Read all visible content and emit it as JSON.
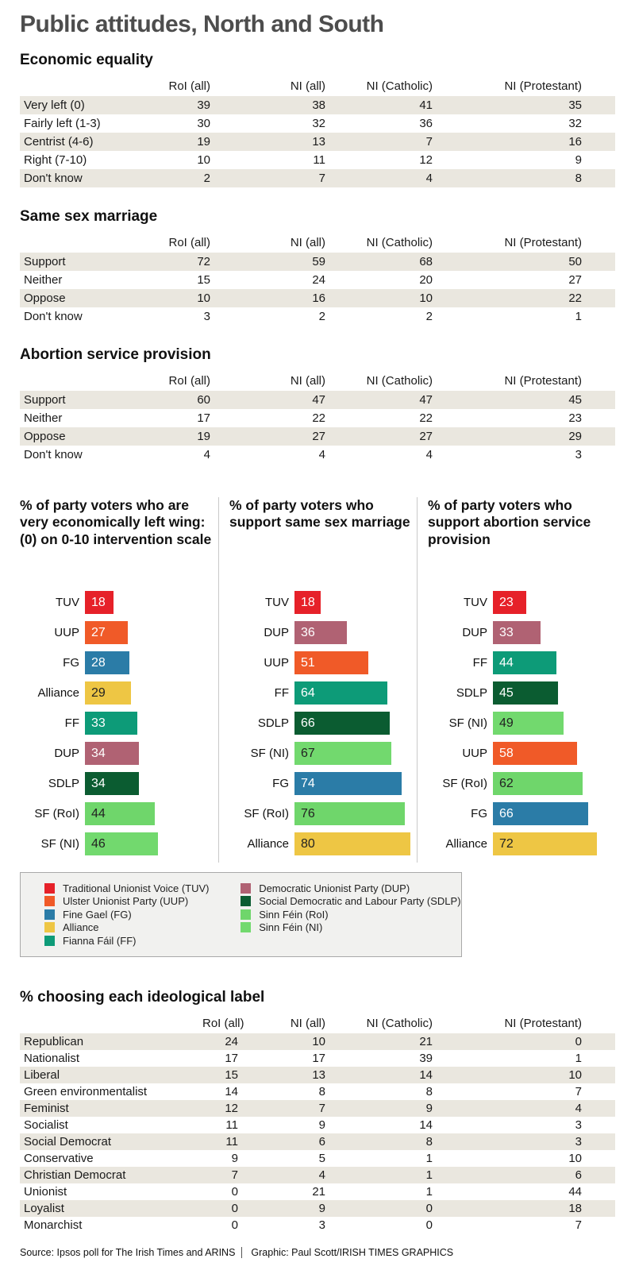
{
  "title": "Public attitudes, North and South",
  "colors": {
    "tuv_red": "#e62129",
    "uup_orange": "#f05a28",
    "fg_blue": "#2b7ca7",
    "alliance_yellow": "#eec644",
    "ff_teal": "#0d9b78",
    "dup_mauve": "#b06273",
    "sdlp_dark_green": "#0b5c31",
    "sf_roi_green": "#6fd66b",
    "sf_ni_green": "#72d96e",
    "row_shade": "#eae7df",
    "title_gray": "#4d4d4d"
  },
  "chart_data": [
    {
      "type": "table",
      "title": "Economic equality",
      "columns": [
        "RoI (all)",
        "NI (all)",
        "NI (Catholic)",
        "NI (Protestant)"
      ],
      "rows": [
        {
          "label": "Very left (0)",
          "values": [
            39,
            38,
            41,
            35
          ]
        },
        {
          "label": "Fairly left (1-3)",
          "values": [
            30,
            32,
            36,
            32
          ]
        },
        {
          "label": "Centrist (4-6)",
          "values": [
            19,
            13,
            7,
            16
          ]
        },
        {
          "label": "Right (7-10)",
          "values": [
            10,
            11,
            12,
            9
          ]
        },
        {
          "label": "Don't know",
          "values": [
            2,
            7,
            4,
            8
          ]
        }
      ]
    },
    {
      "type": "table",
      "title": "Same sex marriage",
      "columns": [
        "RoI (all)",
        "NI (all)",
        "NI (Catholic)",
        "NI (Protestant)"
      ],
      "rows": [
        {
          "label": "Support",
          "values": [
            72,
            59,
            68,
            50
          ]
        },
        {
          "label": "Neither",
          "values": [
            15,
            24,
            20,
            27
          ]
        },
        {
          "label": "Oppose",
          "values": [
            10,
            16,
            10,
            22
          ]
        },
        {
          "label": "Don't know",
          "values": [
            3,
            2,
            2,
            1
          ]
        }
      ]
    },
    {
      "type": "table",
      "title": "Abortion service provision",
      "columns": [
        "RoI (all)",
        "NI (all)",
        "NI (Catholic)",
        "NI (Protestant)"
      ],
      "rows": [
        {
          "label": "Support",
          "values": [
            60,
            47,
            47,
            45
          ]
        },
        {
          "label": "Neither",
          "values": [
            17,
            22,
            22,
            23
          ]
        },
        {
          "label": "Oppose",
          "values": [
            19,
            27,
            27,
            29
          ]
        },
        {
          "label": "Don't know",
          "values": [
            4,
            4,
            4,
            3
          ]
        }
      ]
    },
    {
      "type": "bar",
      "title": "% of party voters who are very economically left wing: (0) on 0-10 intervention scale",
      "categories": [
        "TUV",
        "UUP",
        "FG",
        "Alliance",
        "FF",
        "DUP",
        "SDLP",
        "SF (RoI)",
        "SF (NI)"
      ],
      "values": [
        18,
        27,
        28,
        29,
        33,
        34,
        34,
        44,
        46
      ],
      "colors": [
        "#e62129",
        "#f05a28",
        "#2b7ca7",
        "#eec644",
        "#0d9b78",
        "#b06273",
        "#0b5c31",
        "#6fd66b",
        "#72d96e"
      ],
      "xlim": [
        0,
        80
      ],
      "orientation": "horizontal",
      "value_labels": "inside-left"
    },
    {
      "type": "bar",
      "title": "% of party voters who support same sex marriage",
      "categories": [
        "TUV",
        "DUP",
        "UUP",
        "FF",
        "SDLP",
        "SF (NI)",
        "FG",
        "SF (RoI)",
        "Alliance"
      ],
      "values": [
        18,
        36,
        51,
        64,
        66,
        67,
        74,
        76,
        80
      ],
      "colors": [
        "#e62129",
        "#b06273",
        "#f05a28",
        "#0d9b78",
        "#0b5c31",
        "#72d96e",
        "#2b7ca7",
        "#6fd66b",
        "#eec644"
      ],
      "xlim": [
        0,
        80
      ],
      "orientation": "horizontal",
      "value_labels": "inside-left"
    },
    {
      "type": "bar",
      "title": "% of party voters who support abortion service provision",
      "categories": [
        "TUV",
        "DUP",
        "FF",
        "SDLP",
        "SF (NI)",
        "UUP",
        "SF (RoI)",
        "FG",
        "Alliance"
      ],
      "values": [
        23,
        33,
        44,
        45,
        49,
        58,
        62,
        66,
        72
      ],
      "colors": [
        "#e62129",
        "#b06273",
        "#0d9b78",
        "#0b5c31",
        "#72d96e",
        "#f05a28",
        "#6fd66b",
        "#2b7ca7",
        "#eec644"
      ],
      "xlim": [
        0,
        80
      ],
      "orientation": "horizontal",
      "value_labels": "inside-left"
    },
    {
      "type": "table",
      "title": "% choosing each ideological label",
      "columns": [
        "RoI (all)",
        "NI (all)",
        "NI (Catholic)",
        "NI (Protestant)"
      ],
      "rows": [
        {
          "label": "Republican",
          "values": [
            24,
            10,
            21,
            0
          ]
        },
        {
          "label": "Nationalist",
          "values": [
            17,
            17,
            39,
            1
          ]
        },
        {
          "label": "Liberal",
          "values": [
            15,
            13,
            14,
            10
          ]
        },
        {
          "label": "Green environmentalist",
          "values": [
            14,
            8,
            8,
            7
          ]
        },
        {
          "label": "Feminist",
          "values": [
            12,
            7,
            9,
            4
          ]
        },
        {
          "label": "Socialist",
          "values": [
            11,
            9,
            14,
            3
          ]
        },
        {
          "label": "Social Democrat",
          "values": [
            11,
            6,
            8,
            3
          ]
        },
        {
          "label": "Conservative",
          "values": [
            9,
            5,
            1,
            10
          ]
        },
        {
          "label": "Christian Democrat",
          "values": [
            7,
            4,
            1,
            6
          ]
        },
        {
          "label": "Unionist",
          "values": [
            0,
            21,
            1,
            44
          ]
        },
        {
          "label": "Loyalist",
          "values": [
            0,
            9,
            0,
            18
          ]
        },
        {
          "label": "Monarchist",
          "values": [
            0,
            3,
            0,
            7
          ]
        }
      ]
    }
  ],
  "legend": {
    "items": [
      {
        "label": "Traditional Unionist Voice (TUV)",
        "color": "#e62129"
      },
      {
        "label": "Ulster Unionist Party (UUP)",
        "color": "#f05a28"
      },
      {
        "label": "Fine Gael (FG)",
        "color": "#2b7ca7"
      },
      {
        "label": "Alliance",
        "color": "#eec644"
      },
      {
        "label": "Fianna Fáil (FF)",
        "color": "#0d9b78"
      },
      {
        "label": "Democratic Unionist Party (DUP)",
        "color": "#b06273"
      },
      {
        "label": "Social Democratic and Labour Party (SDLP)",
        "color": "#0b5c31"
      },
      {
        "label": "Sinn Féin (RoI)",
        "color": "#6fd66b"
      },
      {
        "label": "Sinn Féin (NI)",
        "color": "#72d96e"
      }
    ]
  },
  "footer": {
    "source": "Source: Ipsos poll for The Irish Times and ARINS",
    "credit": "Graphic: Paul Scott/IRISH TIMES GRAPHICS"
  }
}
